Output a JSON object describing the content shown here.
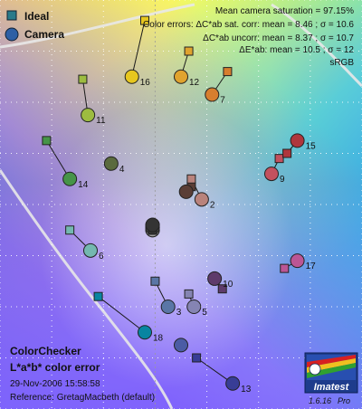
{
  "chart_data": {
    "type": "scatter",
    "title": "ColorChecker",
    "subtitle": "L*a*b* color error",
    "date": "29-Nov-2006 15:58:58",
    "reference": "Reference: GretagMacbeth (default)",
    "x_range": [
      -60,
      80
    ],
    "y_range": [
      -70,
      90
    ],
    "grid": true,
    "legend": [
      {
        "name": "Ideal",
        "marker": "square",
        "color": "#2a7a8a"
      },
      {
        "name": "Camera",
        "marker": "circle",
        "color": "#2d5fa5"
      }
    ],
    "stats": [
      "Mean camera saturation = 97.15%",
      "Color errors:  ΔC*ab sat. corr:  mean = 8.46 ;  σ = 10.6",
      "ΔC*ab uncorr:  mean = 8.37 ;  σ = 10.7",
      "ΔE*ab:  mean = 10.5 ;  σ = 12",
      "sRGB"
    ],
    "logo": "Imatest",
    "version": "1.6.16",
    "edition": "Pro",
    "patches": [
      {
        "n": 1,
        "ideal": [
          14,
          17
        ],
        "camera": [
          12,
          15
        ],
        "color": "#5a3e36",
        "label": ""
      },
      {
        "n": 2,
        "ideal": [
          14,
          20
        ],
        "camera": [
          18,
          12
        ],
        "color": "#b9837c",
        "label": "2"
      },
      {
        "n": 3,
        "ideal": [
          0,
          -20
        ],
        "camera": [
          5,
          -30
        ],
        "color": "#5a76a6",
        "label": "3"
      },
      {
        "n": 4,
        "ideal": [
          -17,
          26
        ],
        "camera": [
          -17,
          26
        ],
        "color": "#5a6a3e",
        "label": "4"
      },
      {
        "n": 5,
        "ideal": [
          13,
          -25
        ],
        "camera": [
          15,
          -30
        ],
        "color": "#8584b3",
        "label": "5"
      },
      {
        "n": 6,
        "ideal": [
          -33,
          0
        ],
        "camera": [
          -25,
          -8
        ],
        "color": "#74b8b0",
        "label": "6"
      },
      {
        "n": 7,
        "ideal": [
          28,
          62
        ],
        "camera": [
          22,
          53
        ],
        "color": "#d77e2e",
        "label": "7"
      },
      {
        "n": 8,
        "ideal": [
          10,
          -45
        ],
        "camera": [
          10,
          -45
        ],
        "color": "#4b5ca5",
        "label": ""
      },
      {
        "n": 9,
        "ideal": [
          48,
          28
        ],
        "camera": [
          45,
          22
        ],
        "color": "#c3515e",
        "label": "9"
      },
      {
        "n": 10,
        "ideal": [
          26,
          -23
        ],
        "camera": [
          23,
          -19
        ],
        "color": "#5e3b6b",
        "label": "10"
      },
      {
        "n": 11,
        "ideal": [
          -28,
          59
        ],
        "camera": [
          -26,
          45
        ],
        "color": "#9dbc40",
        "label": "11"
      },
      {
        "n": 12,
        "ideal": [
          13,
          70
        ],
        "camera": [
          10,
          60
        ],
        "color": "#e0a32e",
        "label": "12"
      },
      {
        "n": 13,
        "ideal": [
          16,
          -50
        ],
        "camera": [
          30,
          -60
        ],
        "color": "#383d96",
        "label": "13"
      },
      {
        "n": 14,
        "ideal": [
          -42,
          35
        ],
        "camera": [
          -33,
          20
        ],
        "color": "#469448",
        "label": "14"
      },
      {
        "n": 15,
        "ideal": [
          51,
          30
        ],
        "camera": [
          55,
          35
        ],
        "color": "#af363c",
        "label": "15"
      },
      {
        "n": 16,
        "ideal": [
          -4,
          82
        ],
        "camera": [
          -9,
          60
        ],
        "color": "#e7c71f",
        "label": "16"
      },
      {
        "n": 17,
        "ideal": [
          50,
          -15
        ],
        "camera": [
          55,
          -12
        ],
        "color": "#bb5695",
        "label": "17"
      },
      {
        "n": 18,
        "ideal": [
          -22,
          -26
        ],
        "camera": [
          -4,
          -40
        ],
        "color": "#0885a1",
        "label": "18"
      },
      {
        "n": 19,
        "ideal": [
          -1,
          2
        ],
        "camera": [
          -1,
          2
        ],
        "color": "#f3f3f2",
        "label": ""
      },
      {
        "n": 20,
        "ideal": [
          -1,
          1
        ],
        "camera": [
          -1,
          0
        ],
        "color": "#c8c8c8",
        "label": ""
      },
      {
        "n": 21,
        "ideal": [
          -1,
          0
        ],
        "camera": [
          -1,
          0
        ],
        "color": "#a0a0a0",
        "label": ""
      },
      {
        "n": 22,
        "ideal": [
          -1,
          0
        ],
        "camera": [
          -1,
          1
        ],
        "color": "#7a7a79",
        "label": ""
      },
      {
        "n": 23,
        "ideal": [
          -1,
          0
        ],
        "camera": [
          -1,
          1
        ],
        "color": "#555555",
        "label": ""
      },
      {
        "n": 24,
        "ideal": [
          -1,
          0
        ],
        "camera": [
          -1,
          2
        ],
        "color": "#343434",
        "label": ""
      }
    ]
  }
}
